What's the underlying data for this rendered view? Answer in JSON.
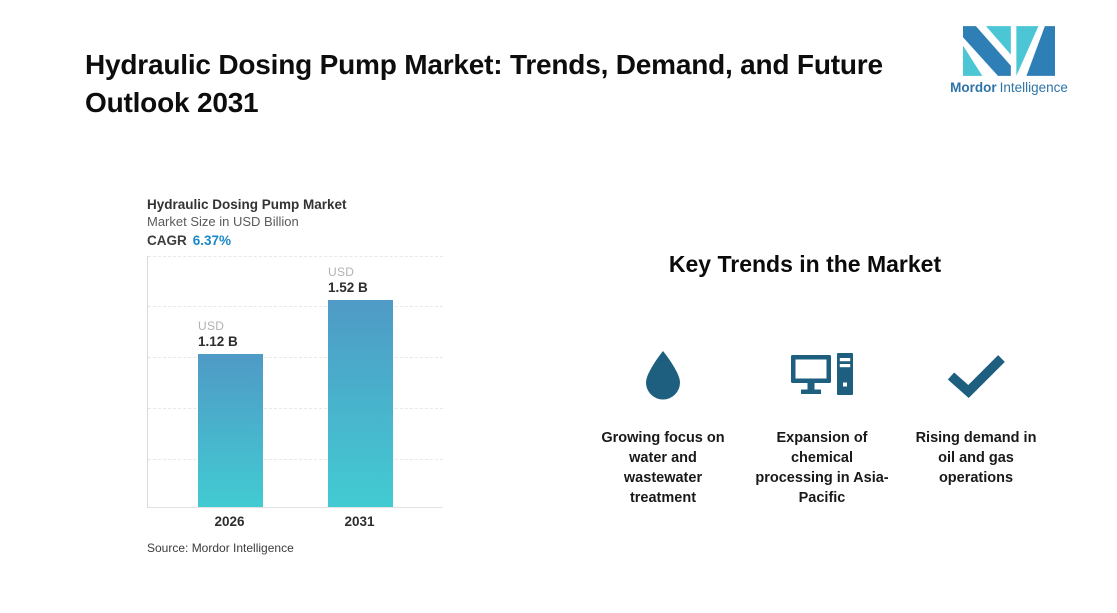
{
  "header": {
    "title_line1": "Hydraulic Dosing Pump Market: Trends, Demand, and Future",
    "title_line2": "Outlook 2031"
  },
  "logo": {
    "brand_bold": "Mordor",
    "brand_regular": "Intelligence",
    "colors": {
      "teal": "#4cc6d4",
      "blue": "#2e7fb5",
      "text": "#2e74a7"
    }
  },
  "chart": {
    "title": "Hydraulic Dosing Pump Market",
    "subtitle": "Market Size in USD Billion",
    "cagr_label": "CAGR",
    "cagr_value": "6.37%",
    "source": "Source: Mordor Intelligence",
    "bars": [
      {
        "year": "2026",
        "unit": "USD",
        "value_label": "1.12 B"
      },
      {
        "year": "2031",
        "unit": "USD",
        "value_label": "1.52 B"
      }
    ]
  },
  "chart_data": {
    "type": "bar",
    "title": "Hydraulic Dosing Pump Market",
    "subtitle": "Market Size in USD Billion",
    "categories": [
      "2026",
      "2031"
    ],
    "values": [
      1.12,
      1.52
    ],
    "unit": "USD Billion",
    "data_labels": [
      "USD 1.12 B",
      "USD 1.52 B"
    ],
    "cagr": "6.37%",
    "ylim": [
      0,
      1.85
    ],
    "grid": "horizontal-dashed",
    "legend": "none",
    "bar_gradient_top": "#4f9ac6",
    "bar_gradient_bottom": "#42cbd2",
    "source": "Source: Mordor Intelligence"
  },
  "trends": {
    "heading": "Key Trends in the Market",
    "icon_color": "#1e5f80",
    "items": [
      {
        "icon": "water-drop-icon",
        "caption": "Growing focus on water and wastewater treatment"
      },
      {
        "icon": "desktop-computer-icon",
        "caption": "Expansion of chemical processing in Asia-Pacific"
      },
      {
        "icon": "checkmark-icon",
        "caption": "Rising demand in oil and gas operations"
      }
    ]
  }
}
